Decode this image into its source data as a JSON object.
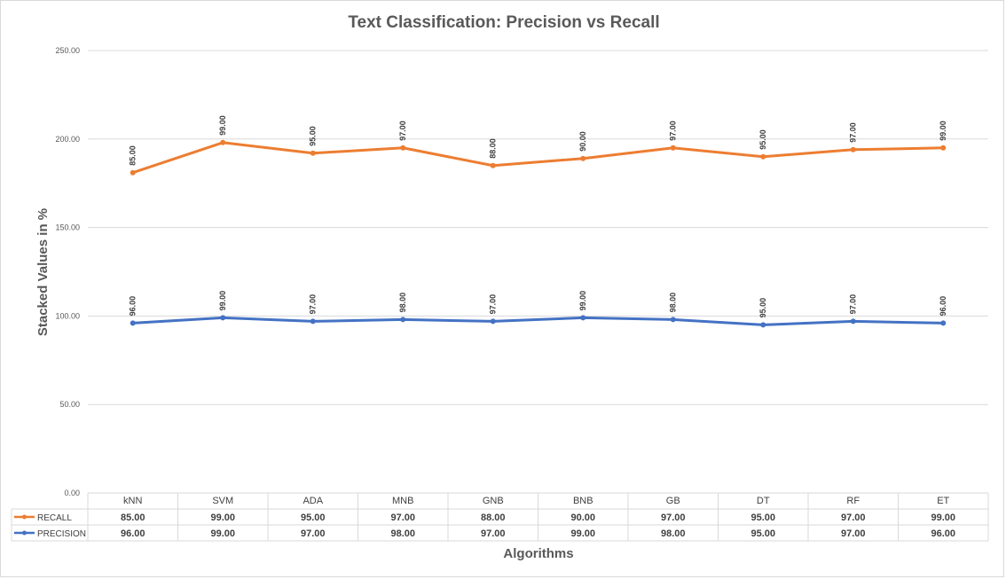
{
  "chart_data": {
    "type": "line",
    "title": "Text Classification: Precision vs Recall",
    "xlabel": "Algorithms",
    "ylabel": "Stacked Values in %",
    "stacked": true,
    "ylim": [
      0,
      250
    ],
    "y_ticks": [
      "0.00",
      "50.00",
      "100.00",
      "150.00",
      "200.00",
      "250.00"
    ],
    "grid": true,
    "legend": "data-table-left",
    "categories": [
      "kNN",
      "SVM",
      "ADA",
      "MNB",
      "GNB",
      "BNB",
      "GB",
      "DT",
      "RF",
      "ET"
    ],
    "series": [
      {
        "name": "PRECISION",
        "color": "#4472c4",
        "values": [
          96,
          99,
          97,
          98,
          97,
          99,
          98,
          95,
          97,
          96
        ],
        "labels": [
          "96.00",
          "99.00",
          "97.00",
          "98.00",
          "97.00",
          "99.00",
          "98.00",
          "95.00",
          "97.00",
          "96.00"
        ]
      },
      {
        "name": "RECALL",
        "color": "#ed7d31",
        "values": [
          85,
          99,
          95,
          97,
          88,
          90,
          97,
          95,
          97,
          99
        ],
        "labels": [
          "85.00",
          "99.00",
          "95.00",
          "97.00",
          "88.00",
          "90.00",
          "97.00",
          "95.00",
          "97.00",
          "99.00"
        ]
      }
    ]
  }
}
